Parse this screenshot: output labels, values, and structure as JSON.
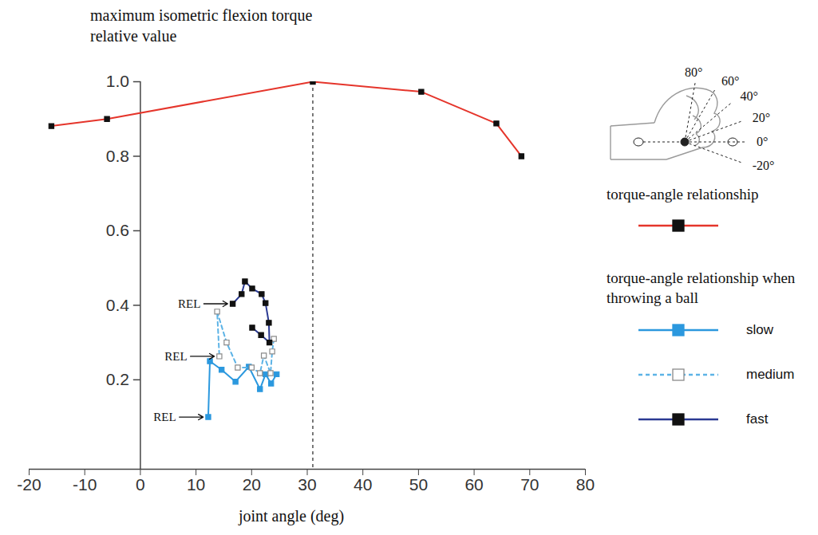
{
  "chart_data": {
    "type": "line",
    "y_label": "maximum isometric flexion torque relative value",
    "x_label": "joint angle (deg)",
    "xlim": [
      -20,
      80
    ],
    "xticks": [
      -20,
      -10,
      0,
      10,
      20,
      30,
      40,
      50,
      60,
      70,
      80
    ],
    "ylim": [
      -0.04,
      1.0
    ],
    "yticks": [
      0.2,
      0.4,
      0.6,
      0.8,
      {
        "value": 1.0,
        "label": "1.0"
      }
    ],
    "grid": false,
    "legend": "right",
    "legend_heading": "torque-angle relationship when throwing a ball",
    "series": [
      {
        "name": "torque-angle relationship",
        "color": "#e5352b",
        "marker": "black_square",
        "line_style": "solid",
        "x": [
          -16,
          -6,
          31,
          50.5,
          64,
          68.5
        ],
        "values": [
          0.881,
          0.9,
          1.0,
          0.973,
          0.888,
          0.8
        ]
      },
      {
        "name": "slow",
        "color": "#2b98de",
        "marker": "square",
        "line_style": "solid",
        "x": [
          24.5,
          23.5,
          22.5,
          21.5,
          19.5,
          17.1,
          14.6,
          12.5,
          12.2
        ],
        "values": [
          0.215,
          0.19,
          0.215,
          0.175,
          0.235,
          0.195,
          0.227,
          0.25,
          0.1
        ]
      },
      {
        "name": "medium",
        "color": "#5cb3e6",
        "marker": "open_square",
        "line_style": "dashed",
        "x": [
          24,
          23.7,
          23.4,
          22.2,
          21.5,
          20,
          17.5,
          15.5,
          13.8,
          14.2
        ],
        "values": [
          0.31,
          0.276,
          0.218,
          0.265,
          0.218,
          0.233,
          0.233,
          0.3,
          0.383,
          0.263
        ]
      },
      {
        "name": "fast",
        "color": "#2b3a93",
        "marker": "black_square",
        "line_style": "solid",
        "x": [
          20.1,
          21.7,
          23.2,
          23.1,
          22.5,
          21.8,
          20.1,
          18.8,
          18.2,
          16.6
        ],
        "values": [
          0.34,
          0.32,
          0.3,
          0.353,
          0.406,
          0.43,
          0.445,
          0.464,
          0.43,
          0.404
        ]
      }
    ],
    "reference_line": {
      "x": 31,
      "line_style": "dashed"
    },
    "annotations": [
      {
        "text": "REL",
        "x": 16.6,
        "y": 0.404
      },
      {
        "text": "REL",
        "x": 14.2,
        "y": 0.263
      },
      {
        "text": "REL",
        "x": 12.2,
        "y": 0.1
      }
    ],
    "inset": {
      "angle_labels": [
        {
          "value": 80,
          "label": "80°"
        },
        {
          "value": 60,
          "label": "60°"
        },
        {
          "value": 40,
          "label": "40°"
        },
        {
          "value": 20,
          "label": "20°"
        },
        {
          "value": 0,
          "label": "0°"
        },
        {
          "value": -20,
          "label": "-20°"
        }
      ]
    }
  }
}
